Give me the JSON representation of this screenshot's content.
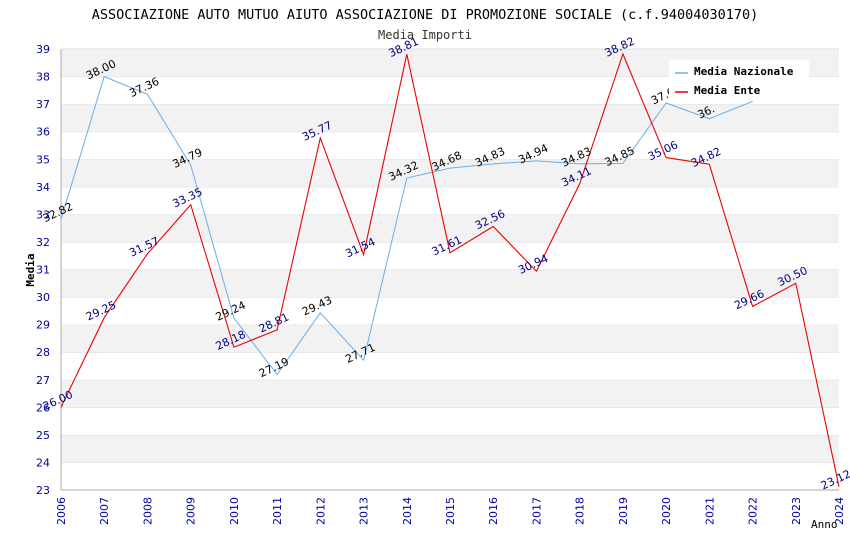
{
  "chart_data": {
    "type": "line",
    "title": "ASSOCIAZIONE AUTO MUTUO AIUTO ASSOCIAZIONE DI PROMOZIONE SOCIALE (c.f.94004030170)",
    "subtitle": "Media Importi",
    "xlabel": "Anno",
    "ylabel": "Media",
    "ylim": [
      23,
      39
    ],
    "y_ticks": [
      "23",
      "24",
      "25",
      "26",
      "27",
      "28",
      "29",
      "30",
      "31",
      "32",
      "33",
      "34",
      "35",
      "36",
      "37",
      "38",
      "39"
    ],
    "categories": [
      "2006",
      "2007",
      "2008",
      "2009",
      "2010",
      "2011",
      "2012",
      "2013",
      "2014",
      "2015",
      "2016",
      "2017",
      "2018",
      "2019",
      "2020",
      "2021",
      "2022",
      "2023",
      "2024"
    ],
    "grid": "horizontal bands",
    "legend_position": "top-right",
    "series": [
      {
        "name": "Media Nazionale",
        "color": "#6aaee8",
        "label_color": "#000000",
        "values": [
          32.82,
          38.0,
          37.36,
          34.79,
          29.24,
          27.19,
          29.43,
          27.71,
          34.32,
          34.68,
          34.83,
          34.94,
          34.83,
          34.85,
          37.04,
          36.47,
          37.1,
          null,
          null
        ],
        "labels": [
          "32.82",
          "38.00",
          "37.36",
          "34.79",
          "29.24",
          "27.19",
          "29.43",
          "27.71",
          "34.32",
          "34.68",
          "34.83",
          "34.94",
          "34.83",
          "34.85",
          "37.0",
          "36.",
          "",
          null,
          null
        ]
      },
      {
        "name": "Media Ente",
        "color": "#ee0000",
        "label_color": "#000080",
        "values": [
          26.0,
          29.25,
          31.57,
          33.35,
          28.18,
          28.81,
          35.77,
          31.54,
          38.81,
          31.61,
          32.56,
          30.94,
          34.11,
          38.82,
          35.06,
          34.82,
          29.66,
          30.5,
          23.12
        ],
        "labels": [
          "26.00",
          "29.25",
          "31.57",
          "33.35",
          "28.18",
          "28.81",
          "35.77",
          "31.54",
          "38.81",
          "31.61",
          "32.56",
          "30.94",
          "34.11",
          "38.82",
          "35.06",
          "34.82",
          "29.66",
          "30.50",
          "23.12"
        ]
      }
    ]
  }
}
